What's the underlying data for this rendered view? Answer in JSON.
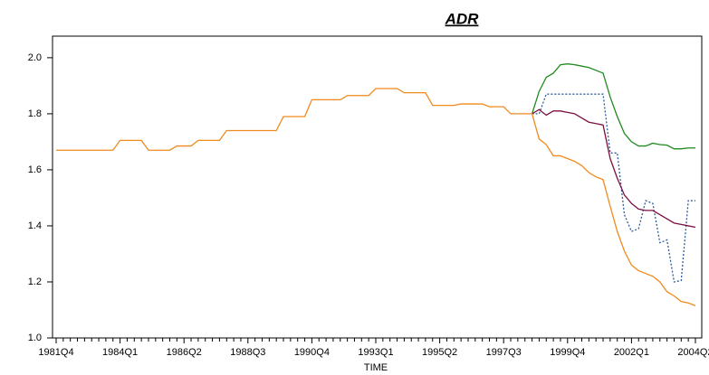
{
  "chart_data": {
    "type": "line",
    "title": "ADR",
    "x_label": "TIME",
    "categories": [
      "1981Q4",
      null,
      null,
      null,
      null,
      null,
      null,
      null,
      null,
      "1984Q1",
      null,
      null,
      null,
      null,
      null,
      null,
      null,
      null,
      "1986Q2",
      null,
      null,
      null,
      null,
      null,
      null,
      null,
      null,
      "1988Q3",
      null,
      null,
      null,
      null,
      null,
      null,
      null,
      null,
      "1990Q4",
      null,
      null,
      null,
      null,
      null,
      null,
      null,
      null,
      "1993Q1",
      null,
      null,
      null,
      null,
      null,
      null,
      null,
      null,
      "1995Q2",
      null,
      null,
      null,
      null,
      null,
      null,
      null,
      null,
      "1997Q3",
      null,
      null,
      null,
      null,
      null,
      null,
      null,
      null,
      "1999Q4",
      null,
      null,
      null,
      null,
      null,
      null,
      null,
      null,
      "2002Q1",
      null,
      null,
      null,
      null,
      null,
      null,
      null,
      null,
      "2004Q2"
    ],
    "ylim": [
      1.0,
      2.077
    ],
    "yticks": [
      {
        "value": 1.0,
        "label": "1.0"
      },
      1.2,
      1.4,
      1.6,
      1.8,
      {
        "value": 2.0,
        "label": "2.0"
      }
    ],
    "series": [
      {
        "color": "#1f8a1f",
        "style": "solid",
        "values": [
          null,
          null,
          null,
          null,
          null,
          null,
          null,
          null,
          null,
          null,
          null,
          null,
          null,
          null,
          null,
          null,
          null,
          null,
          null,
          null,
          null,
          null,
          null,
          null,
          null,
          null,
          null,
          null,
          null,
          null,
          null,
          null,
          null,
          null,
          null,
          null,
          null,
          null,
          null,
          null,
          null,
          null,
          null,
          null,
          null,
          null,
          null,
          null,
          null,
          null,
          null,
          null,
          null,
          null,
          null,
          null,
          null,
          null,
          null,
          null,
          null,
          null,
          null,
          null,
          null,
          null,
          null,
          1.8,
          1.88,
          1.93,
          1.945,
          1.975,
          1.978,
          1.975,
          1.97,
          1.965,
          1.955,
          1.945,
          1.86,
          1.79,
          1.73,
          1.7,
          1.685,
          1.685,
          1.695,
          1.69,
          1.688,
          1.675,
          1.675,
          1.678,
          1.678
        ]
      },
      {
        "color": "#2a5a9a",
        "style": "dotted",
        "values": [
          null,
          null,
          null,
          null,
          null,
          null,
          null,
          null,
          null,
          null,
          null,
          null,
          null,
          null,
          null,
          null,
          null,
          null,
          null,
          null,
          null,
          null,
          null,
          null,
          null,
          null,
          null,
          null,
          null,
          null,
          null,
          null,
          null,
          null,
          null,
          null,
          null,
          null,
          null,
          null,
          null,
          null,
          null,
          null,
          null,
          null,
          null,
          null,
          null,
          null,
          null,
          null,
          null,
          null,
          null,
          null,
          null,
          null,
          null,
          null,
          null,
          null,
          null,
          null,
          null,
          null,
          null,
          1.8,
          1.8,
          1.87,
          1.87,
          1.87,
          1.87,
          1.87,
          1.87,
          1.87,
          1.87,
          1.87,
          1.66,
          1.66,
          1.44,
          1.38,
          1.39,
          1.49,
          1.48,
          1.34,
          1.35,
          1.2,
          1.205,
          1.49,
          1.49
        ]
      },
      {
        "color": "#7a1040",
        "style": "solid",
        "values": [
          null,
          null,
          null,
          null,
          null,
          null,
          null,
          null,
          null,
          null,
          null,
          null,
          null,
          null,
          null,
          null,
          null,
          null,
          null,
          null,
          null,
          null,
          null,
          null,
          null,
          null,
          null,
          null,
          null,
          null,
          null,
          null,
          null,
          null,
          null,
          null,
          null,
          null,
          null,
          null,
          null,
          null,
          null,
          null,
          null,
          null,
          null,
          null,
          null,
          null,
          null,
          null,
          null,
          null,
          null,
          null,
          null,
          null,
          null,
          null,
          null,
          null,
          null,
          null,
          null,
          null,
          null,
          1.8,
          1.815,
          1.795,
          1.81,
          1.81,
          1.805,
          1.8,
          1.785,
          1.77,
          1.765,
          1.76,
          1.64,
          1.57,
          1.51,
          1.48,
          1.46,
          1.455,
          1.455,
          1.44,
          1.425,
          1.41,
          1.405,
          1.4,
          1.395
        ]
      },
      {
        "color": "#f08a1c",
        "style": "solid",
        "values": [
          1.67,
          1.67,
          1.67,
          1.67,
          1.67,
          1.67,
          1.67,
          1.67,
          1.67,
          1.705,
          1.705,
          1.705,
          1.705,
          1.67,
          1.67,
          1.67,
          1.67,
          1.685,
          1.685,
          1.685,
          1.705,
          1.705,
          1.705,
          1.705,
          1.74,
          1.74,
          1.74,
          1.74,
          1.74,
          1.74,
          1.74,
          1.74,
          1.79,
          1.79,
          1.79,
          1.79,
          1.85,
          1.85,
          1.85,
          1.85,
          1.85,
          1.865,
          1.865,
          1.865,
          1.865,
          1.89,
          1.89,
          1.89,
          1.89,
          1.875,
          1.875,
          1.875,
          1.875,
          1.83,
          1.83,
          1.83,
          1.83,
          1.835,
          1.835,
          1.835,
          1.835,
          1.825,
          1.825,
          1.825,
          1.8,
          1.8,
          1.8,
          1.8,
          1.71,
          1.69,
          1.65,
          1.65,
          1.64,
          1.63,
          1.615,
          1.59,
          1.575,
          1.565,
          1.47,
          1.38,
          1.31,
          1.26,
          1.24,
          1.23,
          1.22,
          1.2,
          1.165,
          1.15,
          1.13,
          1.125,
          1.115
        ]
      }
    ]
  }
}
